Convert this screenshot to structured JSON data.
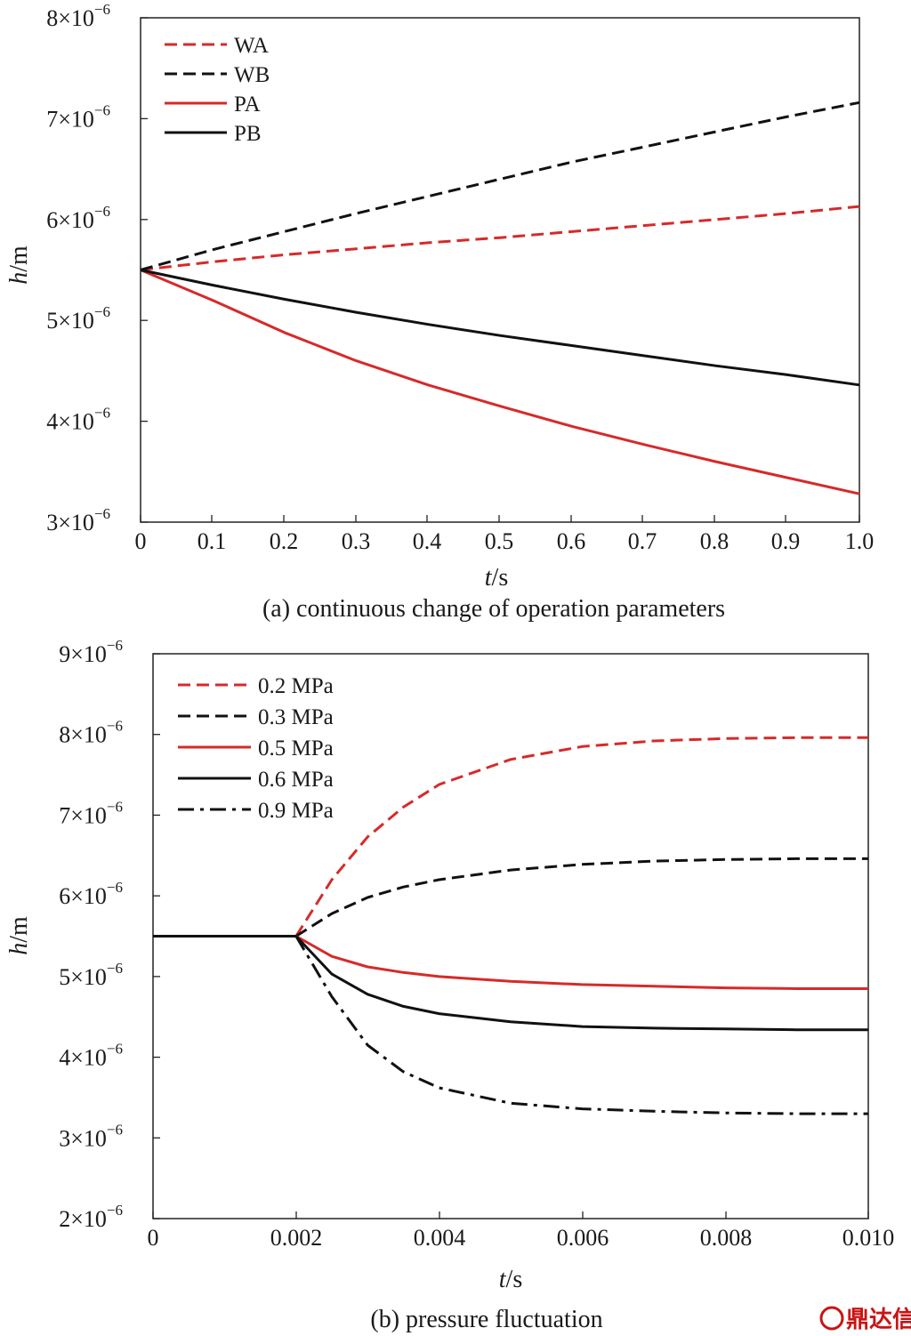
{
  "chart_data": [
    {
      "type": "line",
      "caption": "(a) continuous change of operation parameters",
      "xlabel": "t/s",
      "ylabel": "h/m",
      "xlim": [
        0,
        1.0
      ],
      "ylim": [
        3e-06,
        8e-06
      ],
      "x_ticks": [
        "0",
        "0.1",
        "0.2",
        "0.3",
        "0.4",
        "0.5",
        "0.6",
        "0.7",
        "0.8",
        "0.9",
        "1.0"
      ],
      "y_ticks": [
        3,
        4,
        5,
        6,
        7,
        8
      ],
      "y_tick_base": "×10",
      "y_tick_exp": "−6",
      "legend_position": "top-left",
      "grid": false,
      "series": [
        {
          "name": "WA",
          "color": "#d62a2a",
          "style": "dashed",
          "x": [
            0,
            0.1,
            0.2,
            0.3,
            0.4,
            0.5,
            0.6,
            0.7,
            0.8,
            0.9,
            1.0
          ],
          "y": [
            5.5e-06,
            5.58e-06,
            5.65e-06,
            5.71e-06,
            5.77e-06,
            5.82e-06,
            5.88e-06,
            5.94e-06,
            6e-06,
            6.06e-06,
            6.13e-06
          ]
        },
        {
          "name": "WB",
          "color": "#111111",
          "style": "dashed",
          "x": [
            0,
            0.1,
            0.2,
            0.3,
            0.4,
            0.5,
            0.6,
            0.7,
            0.8,
            0.9,
            1.0
          ],
          "y": [
            5.5e-06,
            5.7e-06,
            5.88e-06,
            6.06e-06,
            6.23e-06,
            6.4e-06,
            6.57e-06,
            6.72e-06,
            6.87e-06,
            7.02e-06,
            7.16e-06
          ]
        },
        {
          "name": "PA",
          "color": "#d62a2a",
          "style": "solid",
          "x": [
            0,
            0.1,
            0.2,
            0.3,
            0.4,
            0.5,
            0.6,
            0.7,
            0.8,
            0.9,
            1.0
          ],
          "y": [
            5.5e-06,
            5.2e-06,
            4.88e-06,
            4.6e-06,
            4.36e-06,
            4.15e-06,
            3.95e-06,
            3.77e-06,
            3.6e-06,
            3.44e-06,
            3.28e-06
          ]
        },
        {
          "name": "PB",
          "color": "#111111",
          "style": "solid",
          "x": [
            0,
            0.1,
            0.2,
            0.3,
            0.4,
            0.5,
            0.6,
            0.7,
            0.8,
            0.9,
            1.0
          ],
          "y": [
            5.5e-06,
            5.35e-06,
            5.21e-06,
            5.08e-06,
            4.96e-06,
            4.85e-06,
            4.75e-06,
            4.65e-06,
            4.55e-06,
            4.46e-06,
            4.36e-06
          ]
        }
      ]
    },
    {
      "type": "line",
      "caption": "(b) pressure fluctuation",
      "xlabel": "t/s",
      "ylabel": "h/m",
      "xlim": [
        0,
        0.01
      ],
      "ylim": [
        2e-06,
        9e-06
      ],
      "x_ticks": [
        "0",
        "0.002",
        "0.004",
        "0.006",
        "0.008",
        "0.010"
      ],
      "y_ticks": [
        2,
        3,
        4,
        5,
        6,
        7,
        8,
        9
      ],
      "y_tick_base": "×10",
      "y_tick_exp": "−6",
      "legend_position": "top-left",
      "grid": false,
      "series": [
        {
          "name": "0.2 MPa",
          "color": "#d62a2a",
          "style": "dashed",
          "x": [
            0.002,
            0.0025,
            0.003,
            0.0035,
            0.004,
            0.005,
            0.006,
            0.007,
            0.008,
            0.009,
            0.01
          ],
          "y": [
            5.5e-06,
            6.2e-06,
            6.73e-06,
            7.1e-06,
            7.38e-06,
            7.69e-06,
            7.85e-06,
            7.92e-06,
            7.95e-06,
            7.96e-06,
            7.96e-06
          ]
        },
        {
          "name": "0.3 MPa",
          "color": "#111111",
          "style": "dashed",
          "x": [
            0.002,
            0.0025,
            0.003,
            0.0035,
            0.004,
            0.005,
            0.006,
            0.007,
            0.008,
            0.009,
            0.01
          ],
          "y": [
            5.5e-06,
            5.78e-06,
            5.98e-06,
            6.11e-06,
            6.2e-06,
            6.32e-06,
            6.39e-06,
            6.43e-06,
            6.45e-06,
            6.46e-06,
            6.46e-06
          ]
        },
        {
          "name": "0.5 MPa",
          "color": "#d62a2a",
          "style": "solid",
          "x": [
            0.002,
            0.0025,
            0.003,
            0.0035,
            0.004,
            0.005,
            0.006,
            0.007,
            0.008,
            0.009,
            0.01
          ],
          "y": [
            5.5e-06,
            5.25e-06,
            5.12e-06,
            5.05e-06,
            5e-06,
            4.94e-06,
            4.9e-06,
            4.88e-06,
            4.86e-06,
            4.85e-06,
            4.85e-06
          ]
        },
        {
          "name": "0.6 MPa",
          "color": "#111111",
          "style": "solid",
          "x": [
            0.002,
            0.0025,
            0.003,
            0.0035,
            0.004,
            0.005,
            0.006,
            0.007,
            0.008,
            0.009,
            0.01
          ],
          "y": [
            5.5e-06,
            5.03e-06,
            4.78e-06,
            4.63e-06,
            4.54e-06,
            4.44e-06,
            4.38e-06,
            4.36e-06,
            4.35e-06,
            4.34e-06,
            4.34e-06
          ]
        },
        {
          "name": "0.9 MPa",
          "color": "#111111",
          "style": "dashdot",
          "x": [
            0.002,
            0.0025,
            0.003,
            0.0035,
            0.004,
            0.005,
            0.006,
            0.007,
            0.008,
            0.009,
            0.01
          ],
          "y": [
            5.5e-06,
            4.75e-06,
            4.15e-06,
            3.82e-06,
            3.62e-06,
            3.43e-06,
            3.36e-06,
            3.33e-06,
            3.31e-06,
            3.3e-06,
            3.3e-06
          ]
        }
      ]
    }
  ],
  "watermark": "鼎达信"
}
